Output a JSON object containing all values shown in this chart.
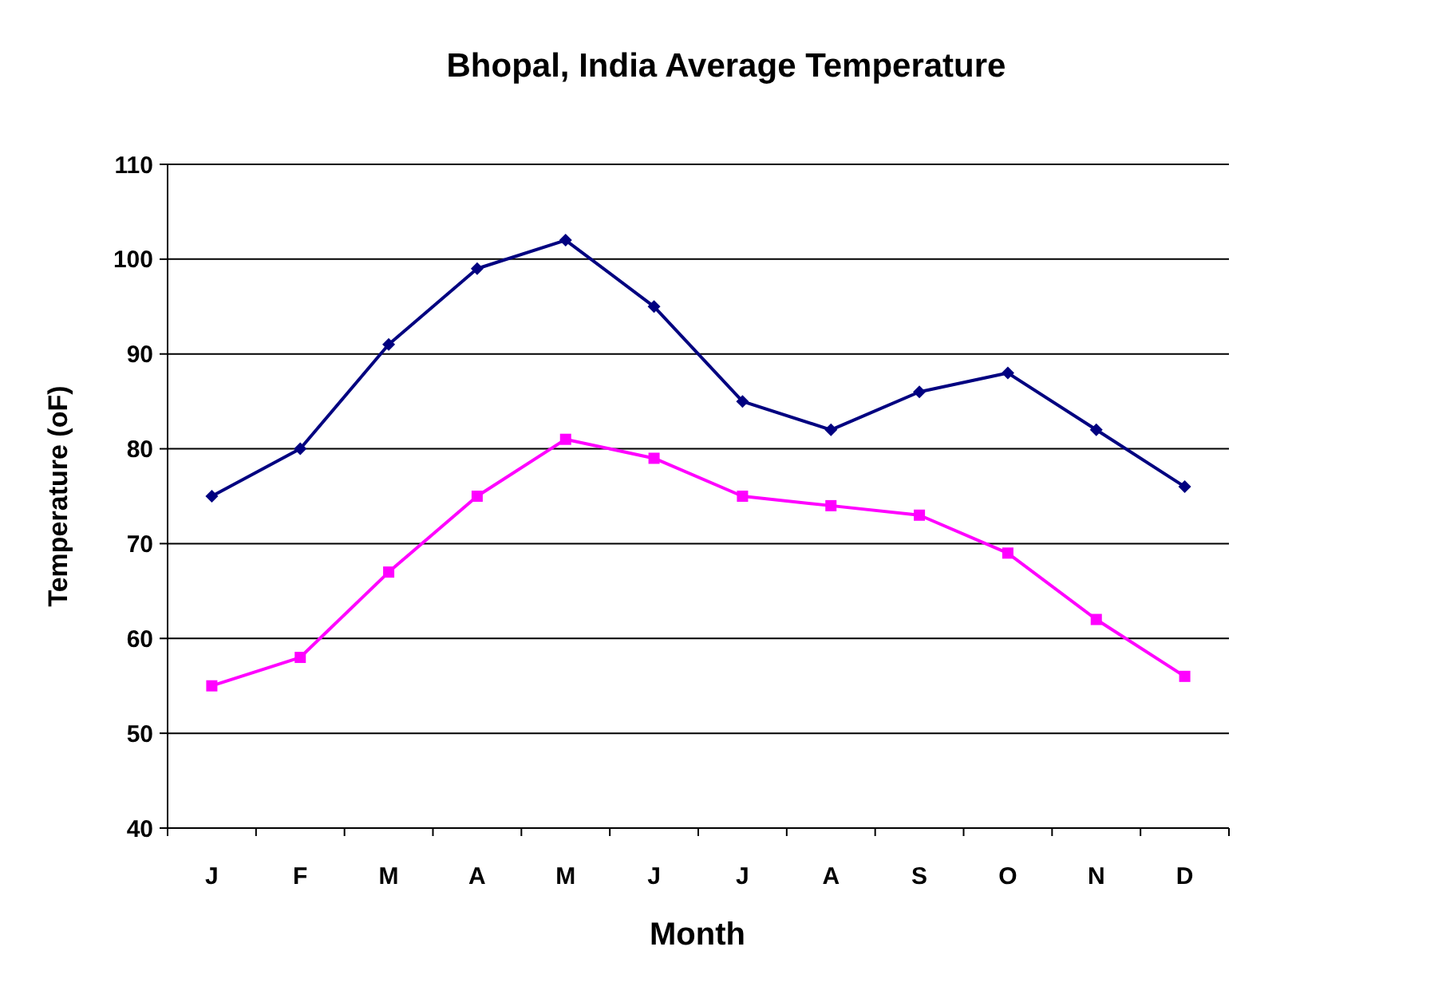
{
  "chart_data": {
    "type": "line",
    "title": "Bhopal, India Average Temperature",
    "xlabel": "Month",
    "ylabel": "Temperature (oF)",
    "categories": [
      "J",
      "F",
      "M",
      "A",
      "M",
      "J",
      "J",
      "A",
      "S",
      "O",
      "N",
      "D"
    ],
    "series": [
      {
        "color": "#000080",
        "marker": "diamond",
        "values": [
          75,
          80,
          91,
          99,
          102,
          95,
          85,
          82,
          86,
          88,
          82,
          76
        ]
      },
      {
        "color": "#ff00ff",
        "marker": "square",
        "values": [
          55,
          58,
          67,
          75,
          81,
          79,
          75,
          74,
          73,
          69,
          62,
          56
        ]
      }
    ],
    "ylim": [
      40,
      110
    ],
    "yticks": [
      40,
      50,
      60,
      70,
      80,
      90,
      100,
      110
    ],
    "grid": "y",
    "line_style": "solid"
  }
}
